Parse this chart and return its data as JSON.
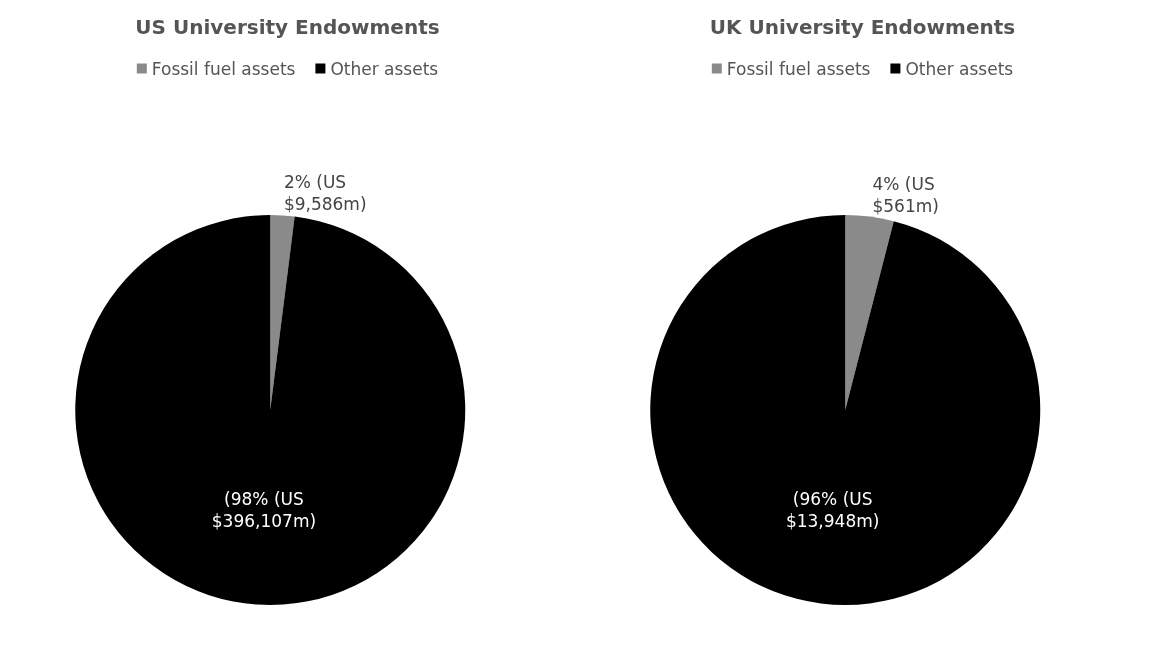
{
  "chart_data": [
    {
      "type": "pie",
      "title": "US University Endowments",
      "categories": [
        "Fossil fuel assets",
        "Other assets"
      ],
      "values": [
        2,
        98
      ],
      "colors": [
        "#8a8a8a",
        "#000000"
      ],
      "value_labels": [
        "2% (US $9,586m)",
        "(98% (US $396,107m)"
      ],
      "legend": "top"
    },
    {
      "type": "pie",
      "title": "UK University Endowments",
      "categories": [
        "Fossil fuel assets",
        "Other assets"
      ],
      "values": [
        4,
        96
      ],
      "colors": [
        "#8a8a8a",
        "#000000"
      ],
      "value_labels": [
        "4% (US $561m)",
        "(96% (US $13,948m)"
      ],
      "legend": "top"
    }
  ]
}
